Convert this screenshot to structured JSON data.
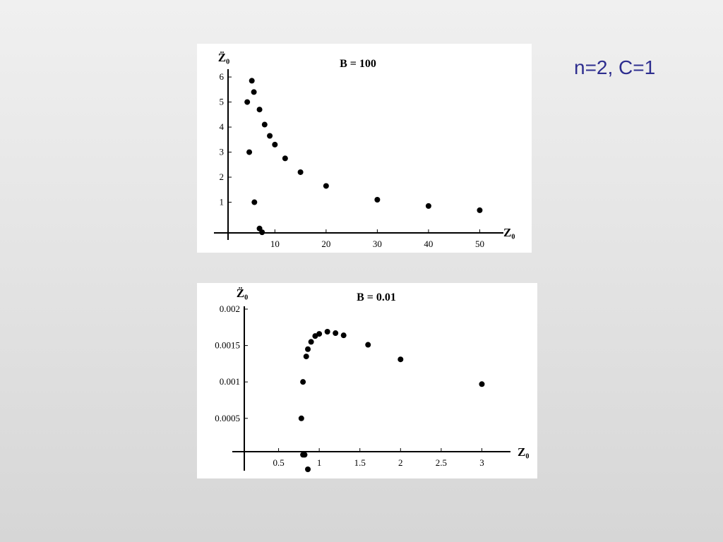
{
  "slide": {
    "label": "n=2, C=1"
  },
  "chart_data": [
    {
      "type": "scatter",
      "title": "B = 100",
      "xlabel": "Z₀",
      "ylabel": "Z̈₀",
      "xlim": [
        -0.8,
        53.8
      ],
      "ylim": [
        -0.45,
        6.2
      ],
      "xticks": [
        10,
        20,
        30,
        40,
        50
      ],
      "yticks": [
        1,
        2,
        3,
        4,
        5,
        6
      ],
      "x": [
        5.5,
        5.9,
        4.6,
        7.0,
        8.0,
        9.0,
        10.0,
        12.0,
        15.0,
        20.0,
        30.0,
        40.0,
        50.0,
        5.0,
        6.0,
        7.0,
        7.5
      ],
      "y": [
        5.85,
        5.4,
        5.0,
        4.7,
        4.1,
        3.65,
        3.3,
        2.75,
        2.2,
        1.65,
        1.1,
        0.85,
        0.68,
        3.0,
        1.0,
        -0.05,
        -0.2
      ]
    },
    {
      "type": "scatter",
      "title": "B = 0.01",
      "xlabel": "Z₀",
      "ylabel": "Z̈₀",
      "xlim": [
        0.0,
        3.3
      ],
      "ylim": [
        -0.0002,
        0.002
      ],
      "xticks": [
        0.5,
        1,
        1.5,
        2,
        2.5,
        3
      ],
      "xtick_labels": [
        "0.5",
        "1",
        "1.5",
        "2",
        "2.5",
        "3"
      ],
      "yticks": [
        0.0005,
        0.001,
        0.0015,
        0.002
      ],
      "ytick_labels": [
        "0.0005",
        "0.001",
        "0.0015",
        "0.002"
      ],
      "x": [
        0.8,
        0.78,
        0.8,
        0.84,
        0.86,
        0.9,
        0.95,
        1.0,
        1.1,
        1.2,
        1.3,
        1.6,
        2.0,
        3.0,
        0.82,
        0.86
      ],
      "y": [
        0.0,
        0.0005,
        0.001,
        0.00135,
        0.00145,
        0.00155,
        0.00163,
        0.00166,
        0.00169,
        0.00167,
        0.00164,
        0.00151,
        0.00131,
        0.00097,
        0.0,
        -0.0002
      ]
    }
  ]
}
